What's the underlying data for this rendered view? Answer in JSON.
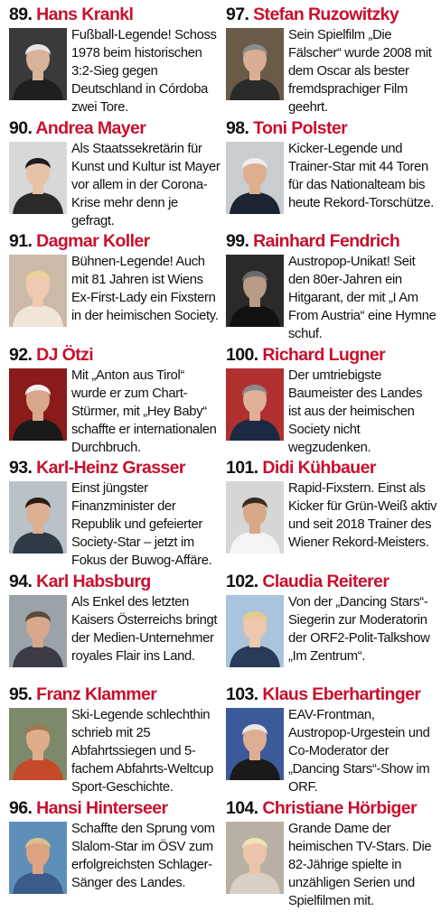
{
  "entries": [
    {
      "number": "89.",
      "name": "Hans Krankl",
      "text": "Fußball-Legende! Schoss 1978 beim historischen 3:2-Sieg gegen Deutschland in Córdoba zwei Tore.",
      "photo": {
        "bg": "#3a3a3a",
        "skin": "#d9b29a",
        "hair": "#e6e6e6",
        "shirt": "#1f1f1f"
      }
    },
    {
      "number": "90.",
      "name": "Andrea Mayer",
      "text": "Als Staatssekretärin für Kunst und Kultur ist Mayer vor allem in der Corona-Krise mehr denn je gefragt.",
      "photo": {
        "bg": "#d8d8d8",
        "skin": "#e8c2a6",
        "hair": "#1c1c1c",
        "shirt": "#2a2a2a"
      }
    },
    {
      "number": "91.",
      "name": "Dagmar Koller",
      "text": "Bühnen-Legende! Auch mit 81 Jahren ist Wiens Ex-First-Lady ein Fixstern in der heimischen Society.",
      "photo": {
        "bg": "#cdb9a8",
        "skin": "#efc9b0",
        "hair": "#e8d49a",
        "shirt": "#f0e6d8"
      }
    },
    {
      "number": "92.",
      "name": "DJ Ötzi",
      "text": "Mit „Anton aus Tirol“ wurde er zum Chart-Stürmer, mit „Hey Baby“ schaffte er internationalen Durchbruch.",
      "photo": {
        "bg": "#8b1a1a",
        "skin": "#d9a88a",
        "hair": "#f2f2f2",
        "shirt": "#1a1a1a"
      }
    },
    {
      "number": "93.",
      "name": "Karl-Heinz Grasser",
      "text": "Einst jüngster Finanzminister der Republik und gefeierter Society-Star – jetzt im Fokus der Buwog-Affäre.",
      "photo": {
        "bg": "#b9c2c9",
        "skin": "#dcae92",
        "hair": "#2b1d14",
        "shirt": "#2f3a46"
      }
    },
    {
      "number": "94.",
      "name": "Karl Habsburg",
      "text": "Als Enkel des letzten Kaisers Österreichs bringt der Medien-Unternehmer royales Flair ins Land.",
      "photo": {
        "bg": "#9aa3a8",
        "skin": "#d8a88c",
        "hair": "#5a4a3c",
        "shirt": "#3b3b44"
      }
    },
    {
      "number": "95.",
      "name": "Franz Klammer",
      "text": "Ski-Legende schlechthin schrieb mit 25 Abfahrtssiegen und 5-fachem Abfahrts-Weltcup Sport-Geschichte.",
      "photo": {
        "bg": "#7d8a6a",
        "skin": "#e0ad8c",
        "hair": "#9a7a52",
        "shirt": "#c44a2a"
      }
    },
    {
      "number": "96.",
      "name": "Hansi Hinterseer",
      "text": "Schaffte den Sprung vom Slalom-Star im ÖSV zum erfolgreichsten Schlager-Sänger des Landes.",
      "photo": {
        "bg": "#5d8fb8",
        "skin": "#dba382",
        "hair": "#d9c08a",
        "shirt": "#3a5c8a"
      }
    },
    {
      "number": "97.",
      "name": "Stefan Ruzowitzky",
      "text": "Sein Spielfilm „Die Fälscher“ wurde 2008 mit dem Oscar als bester fremdsprachiger Film geehrt.",
      "photo": {
        "bg": "#6a5a48",
        "skin": "#d9ae94",
        "hair": "#8c8c8c",
        "shirt": "#2a2a2a"
      }
    },
    {
      "number": "98.",
      "name": "Toni Polster",
      "text": "Kicker-Legende und Trainer-Star mit 44 Toren für das Nationalteam bis heute Rekord-Torschütze.",
      "photo": {
        "bg": "#c9ccd0",
        "skin": "#deae90",
        "hair": "#eeeeee",
        "shirt": "#1c2433"
      }
    },
    {
      "number": "99.",
      "name": "Rainhard Fendrich",
      "text": "Austropop-Unikat! Seit den 80er-Jahren ein Hitgarant, der mit „I Am From Austria“ eine Hymne schuf.",
      "photo": {
        "bg": "#2a2a2a",
        "skin": "#b89a86",
        "hair": "#6a6a6a",
        "shirt": "#111111"
      }
    },
    {
      "number": "100.",
      "name": "Richard Lugner",
      "text": "Der umtriebigste Baumeister des Landes ist aus der heimischen Society nicht wegzudenken.",
      "photo": {
        "bg": "#b03030",
        "skin": "#e0b098",
        "hair": "#8a8a8a",
        "shirt": "#1b2a44"
      }
    },
    {
      "number": "101.",
      "name": "Didi Kühbauer",
      "text": "Rapid-Fixstern. Einst als Kicker für Grün-Weiß aktiv und seit 2018 Trainer des Wiener Rekord-Meisters.",
      "photo": {
        "bg": "#d6d6d6",
        "skin": "#d9a888",
        "hair": "#3a2a1e",
        "shirt": "#f4f4f4"
      }
    },
    {
      "number": "102.",
      "name": "Claudia Reiterer",
      "text": "Von der „Dancing Stars“-Siegerin zur Moderatorin der ORF2-Polit-Talkshow „Im Zentrum“.",
      "photo": {
        "bg": "#a9c4dc",
        "skin": "#efc7ac",
        "hair": "#e2cc8a",
        "shirt": "#2a3a5a"
      }
    },
    {
      "number": "103.",
      "name": "Klaus Eberhartinger",
      "text": "EAV-Frontman, Austropop-Urgestein und Co-Moderator der „Dancing Stars“-Show im ORF.",
      "photo": {
        "bg": "#3c5a9a",
        "skin": "#deae92",
        "hair": "#e8e8e8",
        "shirt": "#1a1a1a"
      }
    },
    {
      "number": "104.",
      "name": "Christiane Hörbiger",
      "text": "Grande Dame der heimischen TV-Stars. Die 82-Jährige spielte in unzähligen Serien und Spielfilmen mit.",
      "photo": {
        "bg": "#b8b0a4",
        "skin": "#ecc4aa",
        "hair": "#f0e2b8",
        "shirt": "#d8d0c4"
      }
    }
  ]
}
